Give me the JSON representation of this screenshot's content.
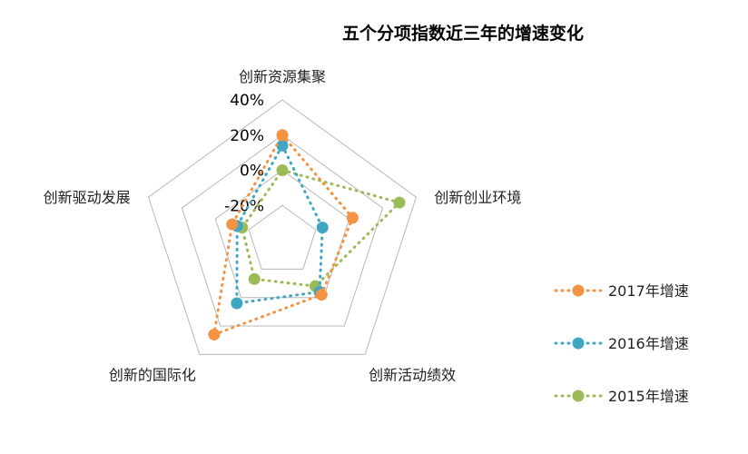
{
  "chart_data": {
    "type": "radar",
    "title": "五个分项指数近三年的增速变化",
    "categories": [
      "创新资源集聚",
      "创新创业环境",
      "创新活动绩效",
      "创新的国际化",
      "创新驱动发展"
    ],
    "rlim": [
      -40,
      40
    ],
    "ticks": [
      "40%",
      "20%",
      "0%",
      "-20%"
    ],
    "tick_values": [
      40,
      20,
      0,
      -20
    ],
    "grid_levels": [
      -40,
      -20,
      0,
      20,
      40
    ],
    "legend_position": "right",
    "series": [
      {
        "name": "2017年增速",
        "color": "#F39343",
        "values": [
          20,
          2,
          -2,
          26,
          -10
        ]
      },
      {
        "name": "2016年增速",
        "color": "#41A6C4",
        "values": [
          14,
          -16,
          -4,
          4,
          -13
        ]
      },
      {
        "name": "2015年增速",
        "color": "#9BBB59",
        "values": [
          0,
          30,
          -8,
          -13,
          -16
        ]
      }
    ]
  }
}
